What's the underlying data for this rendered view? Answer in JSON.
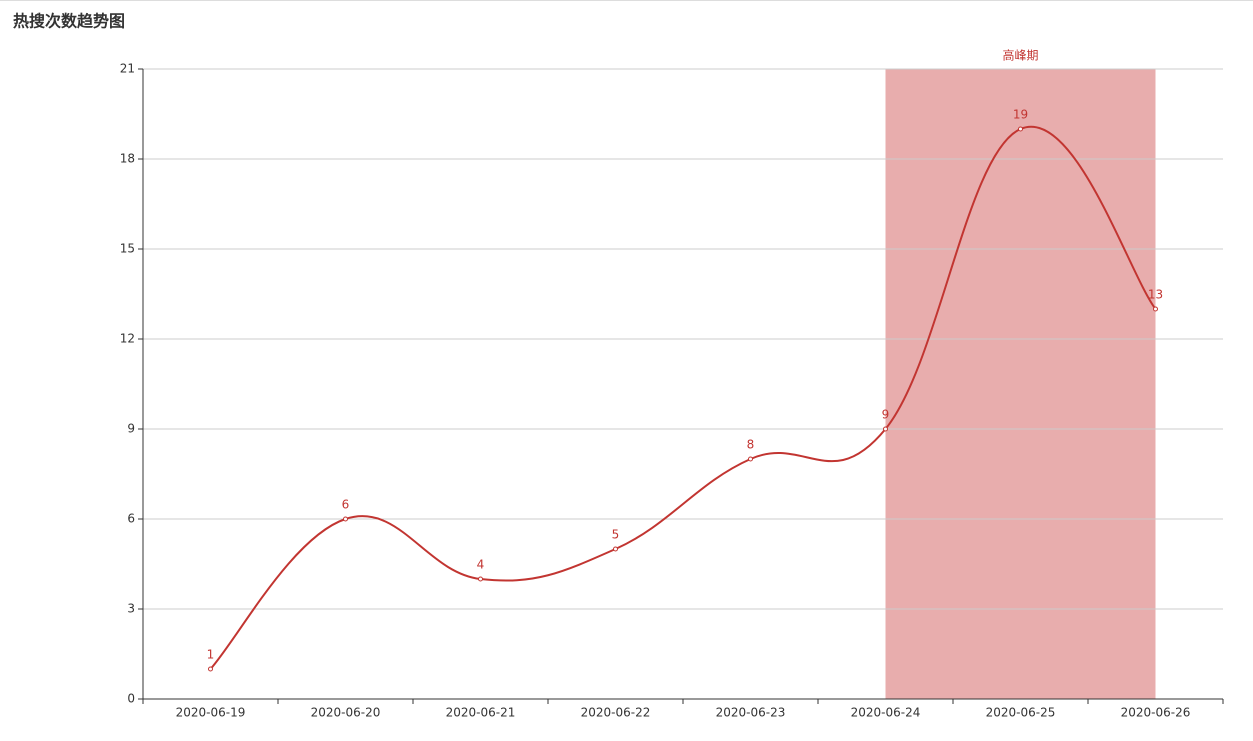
{
  "chart_data": {
    "type": "line",
    "title": "热搜次数趋势图",
    "categories": [
      "2020-06-19",
      "2020-06-20",
      "2020-06-21",
      "2020-06-22",
      "2020-06-23",
      "2020-06-24",
      "2020-06-25",
      "2020-06-26"
    ],
    "values": [
      1,
      6,
      4,
      5,
      8,
      9,
      19,
      13
    ],
    "color": "#c23531",
    "smooth": true,
    "data_labels": true,
    "mark_area": {
      "label": "高峰期",
      "from": "2020-06-24",
      "to": "2020-06-26",
      "color": "#e8adad"
    },
    "ylim": [
      0,
      21
    ],
    "yticks": [
      0,
      3,
      6,
      9,
      12,
      15,
      18,
      21
    ],
    "grid": true
  }
}
